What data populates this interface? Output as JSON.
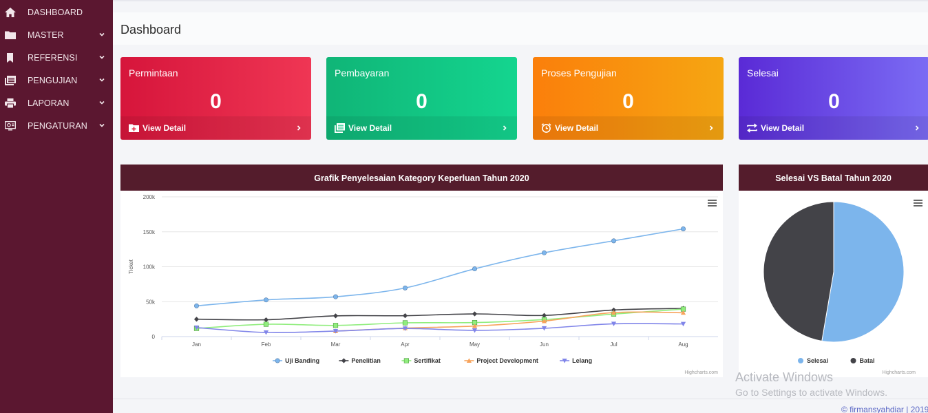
{
  "sidebar": {
    "items": [
      {
        "label": "DASHBOARD",
        "icon": "home-icon",
        "has_chevron": false
      },
      {
        "label": "MASTER",
        "icon": "folder-icon",
        "has_chevron": true
      },
      {
        "label": "REFERENSI",
        "icon": "bookmark-icon",
        "has_chevron": true
      },
      {
        "label": "PENGUJIAN",
        "icon": "list-icon",
        "has_chevron": true
      },
      {
        "label": "LAPORAN",
        "icon": "printer-icon",
        "has_chevron": true
      },
      {
        "label": "PENGATURAN",
        "icon": "settings-monitor-icon",
        "has_chevron": true
      }
    ],
    "colors": {
      "background": "#5b1730"
    }
  },
  "header": {
    "title": "Dashboard"
  },
  "cards": [
    {
      "label": "Permintaan",
      "value": "0",
      "link": "View Detail",
      "icon": "folder-plus-icon",
      "color": "#e3233f"
    },
    {
      "label": "Pembayaran",
      "value": "0",
      "link": "View Detail",
      "icon": "documents-icon",
      "color": "#12c383"
    },
    {
      "label": "Proses Pengujian",
      "value": "0",
      "link": "View Detail",
      "icon": "alarm-clock-icon",
      "color": "#f98f0e"
    },
    {
      "label": "Selesai",
      "value": "0",
      "link": "View Detail",
      "icon": "swap-arrows-icon",
      "color": "#6748e5"
    }
  ],
  "line_panel": {
    "title": "Grafik Penyelesaian Kategory Keperluan Tahun 2020",
    "credits": "Highcharts.com"
  },
  "pie_panel": {
    "title": "Selesai VS Batal Tahun 2020",
    "credits": "Highcharts.com"
  },
  "chart_data": [
    {
      "type": "line",
      "title": "Grafik Penyelesaian Kategory Keperluan Tahun 2020",
      "ylabel": "Ticket",
      "xlabel": "",
      "categories": [
        "Jan",
        "Feb",
        "Mar",
        "Apr",
        "May",
        "Jun",
        "Jul",
        "Aug"
      ],
      "yticks": [
        0,
        50000,
        100000,
        150000,
        200000
      ],
      "ytick_labels": [
        "0",
        "50k",
        "100k",
        "150k",
        "200k"
      ],
      "ylim": [
        0,
        200000
      ],
      "grid": true,
      "legend": "bottom",
      "series": [
        {
          "name": "Uji Banding",
          "color": "#7cb5ec",
          "marker": "circle",
          "values": [
            44000,
            52500,
            57000,
            69600,
            97000,
            119900,
            137100,
            154200
          ]
        },
        {
          "name": "Penelitian",
          "color": "#434348",
          "marker": "diamond",
          "values": [
            24900,
            24100,
            29700,
            29900,
            32500,
            30300,
            38100,
            40400
          ]
        },
        {
          "name": "Sertifikat",
          "color": "#90ed7d",
          "marker": "square",
          "values": [
            11700,
            17700,
            16000,
            19700,
            20100,
            24400,
            32200,
            39300
          ]
        },
        {
          "name": "Project Development",
          "color": "#f7a35c",
          "marker": "triangle",
          "values": [
            null,
            null,
            7900,
            12200,
            15100,
            22200,
            34400,
            34200
          ]
        },
        {
          "name": "Lelang",
          "color": "#8085e9",
          "marker": "triangle-down",
          "values": [
            12900,
            5900,
            7900,
            11600,
            8900,
            11900,
            18300,
            18100
          ]
        }
      ]
    },
    {
      "type": "pie",
      "title": "Selesai VS Batal Tahun 2020",
      "legend": "bottom",
      "series": [
        {
          "name": "Selesai",
          "color": "#7cb5ec",
          "value": 52.7
        },
        {
          "name": "Batal",
          "color": "#434348",
          "value": 47.3
        }
      ]
    }
  ],
  "watermark": {
    "line1": "Activate Windows",
    "line2": "Go to Settings to activate Windows."
  },
  "footer": {
    "copyright": "© firmansyahdiar | 2019"
  }
}
